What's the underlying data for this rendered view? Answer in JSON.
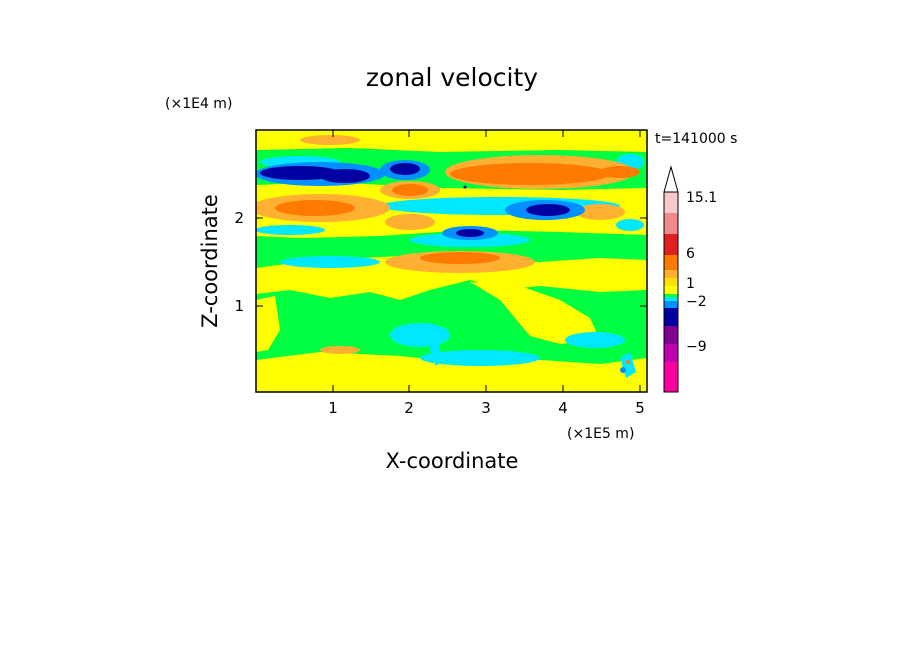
{
  "chart_data": {
    "type": "heatmap",
    "title": "zonal velocity",
    "xlabel": "X-coordinate",
    "ylabel": "Z-coordinate",
    "x_unit": "(×1E5 m)",
    "y_unit": "(×1E4 m)",
    "time_label": "t=141000 s",
    "xlim": [
      0,
      5.1
    ],
    "ylim": [
      0,
      2.95
    ],
    "x_ticks": [
      "1",
      "2",
      "3",
      "4",
      "5"
    ],
    "y_ticks": [
      "1",
      "2"
    ],
    "colorbar": {
      "labels": [
        "15.1",
        "6",
        "1",
        "−2",
        "−9"
      ],
      "levels": [
        15.1,
        12,
        9,
        6,
        3,
        1.5,
        1,
        0.5,
        -0.5,
        -1,
        -2,
        -4.5,
        -9,
        -13.5,
        -18
      ],
      "colors": [
        "#ffffff",
        "#f9c8c8",
        "#f08a8a",
        "#e02020",
        "#ff7a00",
        "#ffb030",
        "#ffe000",
        "#ffff00",
        "#00ff40",
        "#00e8ff",
        "#0090ff",
        "#0000a0",
        "#800090",
        "#c000b0",
        "#ff00a0"
      ]
    },
    "field_features": [
      {
        "value": -12,
        "color": "#0000a0",
        "desc_pos": "x 0.3-1.4, z 2.4-2.55"
      },
      {
        "value": -12,
        "color": "#0000a0",
        "desc_pos": "x 1.7-2.2, z 2.45-2.6"
      },
      {
        "value": -12,
        "color": "#0000a0",
        "desc_pos": "x 3.3-4.1, z 1.95-2.15"
      },
      {
        "value": -12,
        "color": "#0000a0",
        "desc_pos": "x 2.6-3.0, z 1.75-1.85"
      },
      {
        "value": 6,
        "color": "#ff7a00",
        "desc_pos": "x 2.7-4.6, z 2.35-2.6"
      },
      {
        "value": 6,
        "color": "#ff7a00",
        "desc_pos": "x 0.4-1.4, z 1.95-2.15"
      },
      {
        "value": 6,
        "color": "#ff7a00",
        "desc_pos": "x 1.8-2.4, z 2.2-2.35"
      },
      {
        "value": 4,
        "color": "#ffb030",
        "desc_pos": "x 2.1-3.9, z 1.35-1.65"
      }
    ]
  }
}
